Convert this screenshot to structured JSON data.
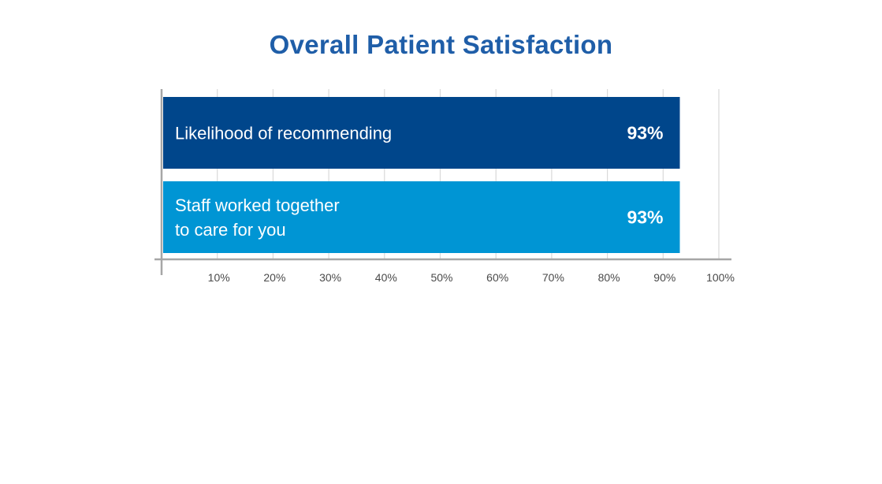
{
  "chart_data": {
    "type": "bar",
    "orientation": "horizontal",
    "title": "Overall Patient Satisfaction",
    "categories": [
      "Likelihood of recommending",
      "Staff worked together to care for you"
    ],
    "category_lines": [
      [
        "Likelihood of recommending"
      ],
      [
        "Staff worked together",
        "to care for you"
      ]
    ],
    "values": [
      93,
      93
    ],
    "value_labels": [
      "93%",
      "93%"
    ],
    "bar_colors": [
      "#00468b",
      "#0095d4"
    ],
    "xlim": [
      0,
      100
    ],
    "x_ticks": [
      10,
      20,
      30,
      40,
      50,
      60,
      70,
      80,
      90,
      100
    ],
    "x_tick_labels": [
      "10%",
      "20%",
      "30%",
      "40%",
      "50%",
      "60%",
      "70%",
      "80%",
      "90%",
      "100%"
    ],
    "xlabel": "",
    "ylabel": "",
    "grid": true,
    "legend": false
  },
  "colors": {
    "title": "#1f5ea8",
    "grid": "#d9d9d9",
    "axis": "#a6a6a6",
    "text_on_bar": "#ffffff"
  }
}
